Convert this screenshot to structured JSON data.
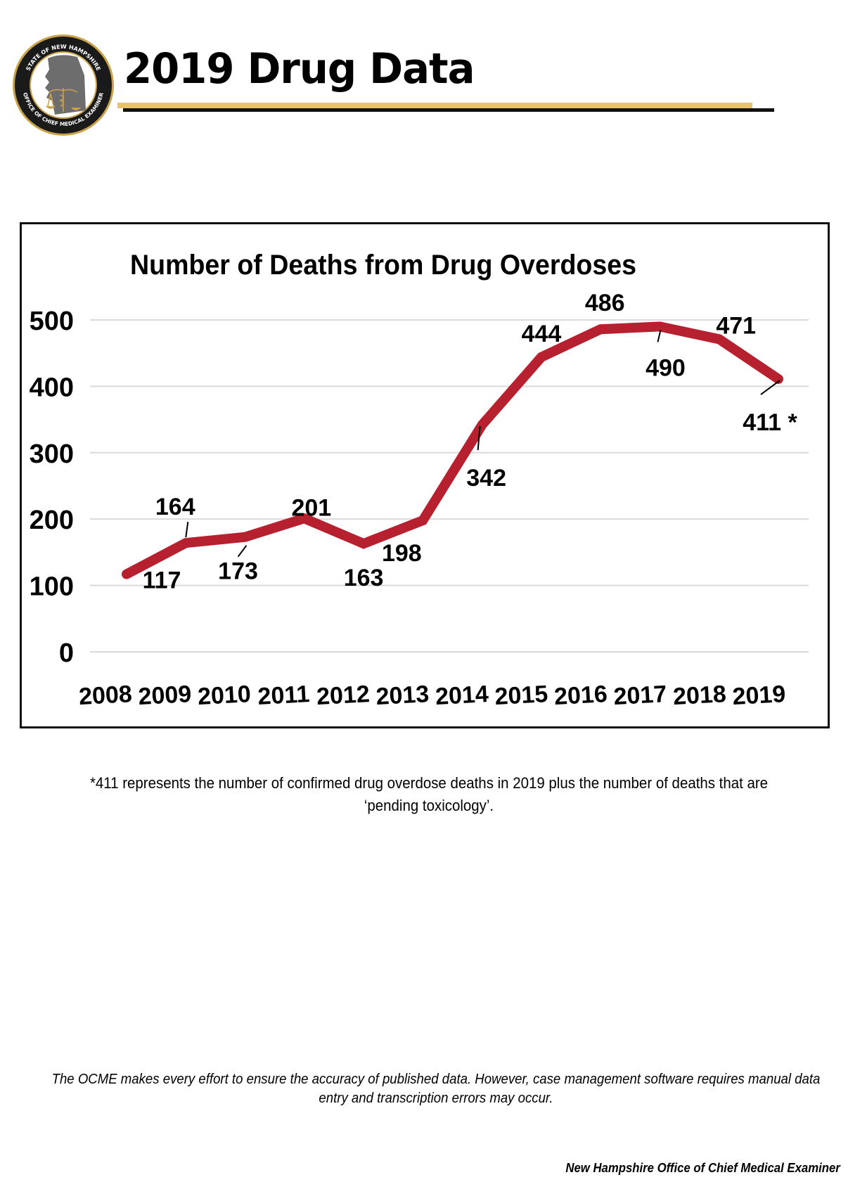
{
  "header": {
    "title": "2019 Drug Data",
    "logo": {
      "top_text": "STATE OF NEW HAMPSHIRE",
      "bottom_text": "OFFICE OF CHIEF MEDICAL EXAMINER",
      "icon": "seal-icon"
    },
    "accent_color": "#e9c46a"
  },
  "chart_data": {
    "type": "line",
    "title": "Number of Deaths from Drug Overdoses",
    "xlabel": "",
    "ylabel": "",
    "categories": [
      "2008",
      "2009",
      "2010",
      "2011",
      "2012",
      "2013",
      "2014",
      "2015",
      "2016",
      "2017",
      "2018",
      "2019"
    ],
    "series": [
      {
        "name": "Drug overdose deaths",
        "color": "#b7202e",
        "values": [
          117,
          164,
          173,
          201,
          163,
          198,
          342,
          444,
          486,
          490,
          471,
          411
        ],
        "labels": [
          "117",
          "164",
          "173",
          "201",
          "163",
          "198",
          "342",
          "444",
          "486",
          "490",
          "471",
          "411 *"
        ]
      }
    ],
    "yticks": [
      "0",
      "100",
      "200",
      "300",
      "400",
      "500"
    ],
    "ylim": [
      0,
      500
    ],
    "grid": true,
    "legend": "none"
  },
  "notes": {
    "asterisk_note": "*411 represents the number of confirmed drug overdose deaths in 2019 plus the number of deaths that are ‘pending toxicology’.",
    "disclaimer": "The OCME makes every effort to ensure the accuracy of published data.  However, case management software requires manual data entry and transcription errors may occur.",
    "footer": "New Hampshire Office of Chief Medical Examiner"
  }
}
